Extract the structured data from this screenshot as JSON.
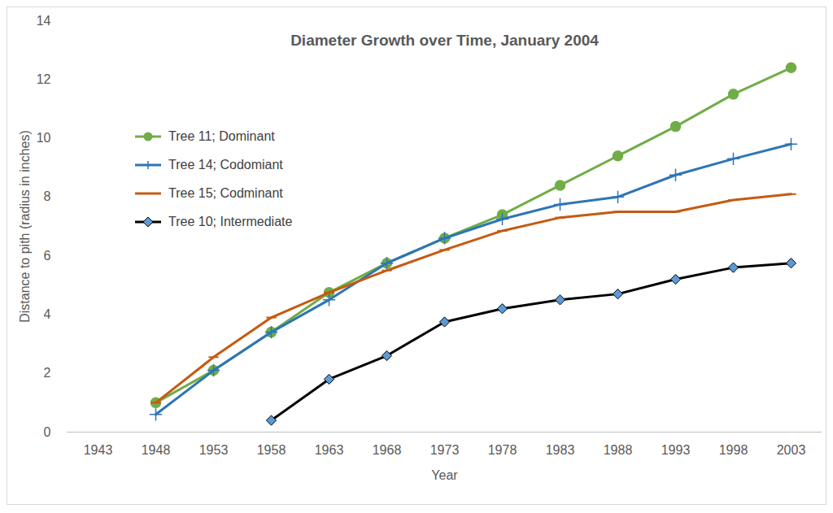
{
  "chart_data": {
    "type": "line",
    "title": "Diameter Growth over Time, January 2004",
    "x_label": "Year",
    "y_label": "Distance to pith (radius in inches)",
    "categories": [
      "1943",
      "1948",
      "1953",
      "1958",
      "1963",
      "1968",
      "1973",
      "1978",
      "1983",
      "1988",
      "1993",
      "1998",
      "2003"
    ],
    "series": [
      {
        "name": "Tree 11; Dominant",
        "color": "#70ad47",
        "marker": "circle",
        "values": [
          null,
          1.0,
          2.1,
          3.4,
          4.75,
          5.75,
          6.6,
          7.4,
          8.4,
          9.4,
          10.4,
          11.5,
          12.4
        ]
      },
      {
        "name": "Tree 14; Codomiant",
        "color": "#2e75b6",
        "marker": "plus",
        "values": [
          null,
          0.6,
          2.1,
          3.4,
          4.5,
          5.75,
          6.6,
          7.25,
          7.75,
          8.0,
          8.75,
          9.3,
          9.8
        ]
      },
      {
        "name": "Tree 15; Codminant",
        "color": "#c55a11",
        "marker": "dash",
        "values": [
          null,
          1.0,
          2.55,
          3.9,
          4.75,
          5.5,
          6.2,
          6.85,
          7.3,
          7.5,
          7.5,
          7.9,
          8.1
        ]
      },
      {
        "name": "Tree 10; Intermediate",
        "color": "#000000",
        "marker": "diamond",
        "values": [
          null,
          null,
          null,
          0.4,
          1.8,
          2.6,
          3.75,
          4.2,
          4.5,
          4.7,
          5.2,
          5.6,
          5.75
        ]
      }
    ],
    "ylim": [
      0,
      14
    ],
    "yticks": [
      0,
      2,
      4,
      6,
      8,
      10,
      12,
      14
    ],
    "grid": false,
    "legend": "upper left"
  }
}
